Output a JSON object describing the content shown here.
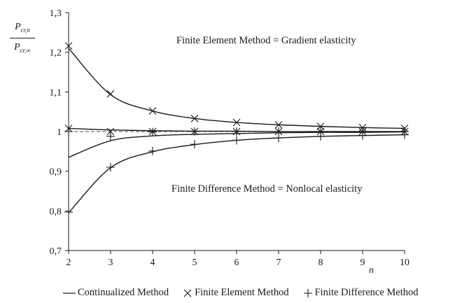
{
  "chart_data": {
    "type": "line",
    "ylabel": {
      "numerator": "P",
      "numerator_sub": "cr,n",
      "denominator": "P",
      "denominator_sub": "cr,∞"
    },
    "xlabel": "n",
    "x": [
      2,
      3,
      4,
      5,
      6,
      7,
      8,
      9,
      10
    ],
    "xlim": [
      2,
      10
    ],
    "ylim": [
      0.7,
      1.3
    ],
    "xticks": [
      "2",
      "3",
      "4",
      "5",
      "6",
      "7",
      "8",
      "9",
      "10"
    ],
    "yticks": [
      "0,7",
      "0,8",
      "0,9",
      "1",
      "1,1",
      "1,2",
      "1,3"
    ],
    "ytick_values": [
      0.7,
      0.8,
      0.9,
      1.0,
      1.1,
      1.2,
      1.3
    ],
    "grid": false,
    "series": [
      {
        "name": "Continualized Method",
        "style": "line",
        "curve": "upper",
        "values": [
          1.21,
          1.093,
          1.052,
          1.033,
          1.023,
          1.017,
          1.013,
          1.01,
          1.008
        ]
      },
      {
        "name": "Continualized Method",
        "style": "line",
        "curve": "middle-top",
        "values": [
          1.008,
          1.004,
          1.002,
          1.001,
          1.001,
          1.0,
          1.0,
          1.0,
          1.0
        ]
      },
      {
        "name": "Continualized Method",
        "style": "line",
        "curve": "middle-bottom",
        "values": [
          0.935,
          0.977,
          0.989,
          0.993,
          0.995,
          0.997,
          0.998,
          0.998,
          0.999
        ]
      },
      {
        "name": "Continualized Method",
        "style": "line",
        "curve": "lower",
        "values": [
          0.795,
          0.909,
          0.949,
          0.967,
          0.978,
          0.984,
          0.988,
          0.99,
          0.992
        ]
      },
      {
        "name": "Finite Element Method",
        "style": "x",
        "values": [
          1.216,
          1.095,
          1.052,
          1.033,
          1.023,
          1.017,
          1.013,
          1.01,
          1.008
        ]
      },
      {
        "name": "Finite Element Method",
        "style": "x",
        "values": [
          1.008,
          1.0,
          1.0,
          1.0,
          1.0,
          1.0,
          1.0,
          1.0,
          1.0
        ]
      },
      {
        "name": "Finite Difference Method",
        "style": "plus",
        "values": [
          0.797,
          0.91,
          0.951,
          0.968,
          0.978,
          0.984,
          0.988,
          0.99,
          0.992
        ]
      },
      {
        "name": "Finite Difference Method",
        "style": "plus",
        "values": [
          1.0,
          0.988,
          0.999,
          1.0,
          1.0,
          1.0,
          1.0,
          1.0,
          1.0
        ]
      }
    ],
    "reference_line": {
      "y": 1.0,
      "style": "dashed"
    },
    "annotations": [
      {
        "text": "Finite Element Method = Gradient elasticity"
      },
      {
        "text": "Finite Difference Method = Nonlocal elasticity"
      }
    ],
    "legend": [
      "Continualized Method",
      "Finite Element Method",
      "Finite Difference Method"
    ],
    "legend_position": "bottom"
  }
}
